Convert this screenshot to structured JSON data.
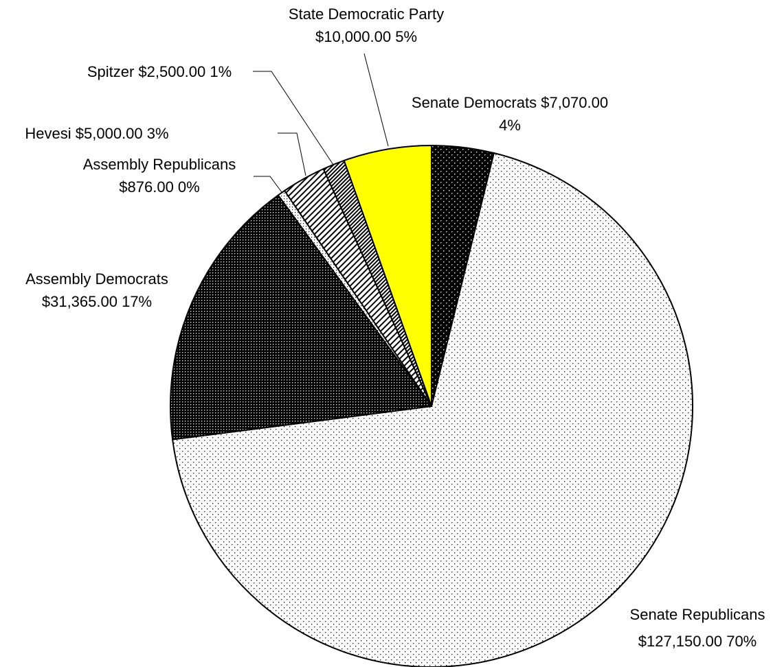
{
  "chart_data": {
    "type": "pie",
    "title": "",
    "slices": [
      {
        "name": "Senate Democrats",
        "value": 7070.0,
        "percent": 4,
        "line1": "Senate Democrats $7,070.00",
        "line2": "4%",
        "pattern": "dark-dots",
        "color": "#000000"
      },
      {
        "name": "Senate Republicans",
        "value": 127150.0,
        "percent": 70,
        "line1": "Senate Republicans",
        "line2": "$127,150.00  70%",
        "pattern": "light-dots",
        "color": "#ffffff"
      },
      {
        "name": "Assembly Democrats",
        "value": 31365.0,
        "percent": 17,
        "line1": "Assembly Democrats",
        "line2": "$31,365.00  17%",
        "pattern": "dark-grid",
        "color": "#1a1a1a"
      },
      {
        "name": "Assembly Republicans",
        "value": 876.0,
        "percent": 0,
        "line1": "Assembly Republicans",
        "line2": "$876.00  0%",
        "pattern": "sparse-dots",
        "color": "#ffffff"
      },
      {
        "name": "Hevesi",
        "value": 5000.0,
        "percent": 3,
        "line1": "Hevesi $5,000.00  3%",
        "line2": "",
        "pattern": "diagonal-wide",
        "color": "#ffffff"
      },
      {
        "name": "Spitzer",
        "value": 2500.0,
        "percent": 1,
        "line1": "Spitzer $2,500.00  1%",
        "line2": "",
        "pattern": "diagonal-dense",
        "color": "#ffffff"
      },
      {
        "name": "State Democratic Party",
        "value": 10000.0,
        "percent": 5,
        "line1": "State Democratic Party",
        "line2": "$10,000.00  5%",
        "pattern": "solid",
        "color": "#ffff00"
      }
    ]
  }
}
